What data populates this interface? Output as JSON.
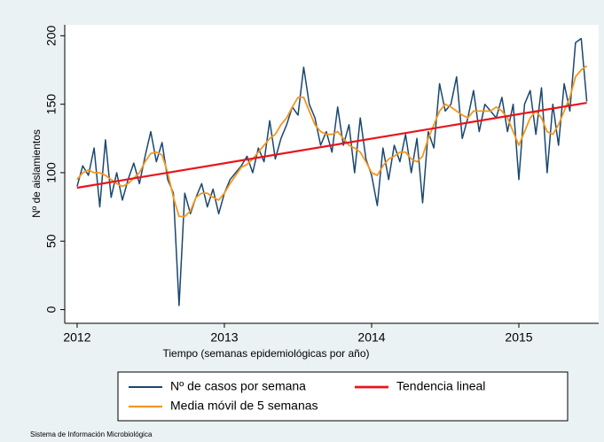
{
  "chart_data": {
    "type": "line",
    "ylabel": "Nº de aislamientos",
    "xlabel": "Tiempo (semanas epidemiológicas por año)",
    "footer": "Sistema de Información Microbiológica",
    "xlim": [
      2011.916,
      2015.542
    ],
    "ylim": [
      -10,
      208
    ],
    "xticks": [
      2012,
      2013,
      2014,
      2015
    ],
    "yticks": [
      0,
      50,
      100,
      150,
      200
    ],
    "x": [
      2012,
      2012.0385,
      2012.0769,
      2012.1154,
      2012.1538,
      2012.1923,
      2012.2308,
      2012.2692,
      2012.3077,
      2012.3462,
      2012.3846,
      2012.4231,
      2012.4615,
      2012.5,
      2012.5385,
      2012.5769,
      2012.6154,
      2012.6538,
      2012.6923,
      2012.7308,
      2012.7692,
      2012.8077,
      2012.8462,
      2012.8846,
      2012.9231,
      2012.9615,
      2013,
      2013.0385,
      2013.0769,
      2013.1154,
      2013.1538,
      2013.1923,
      2013.2308,
      2013.2692,
      2013.3077,
      2013.3462,
      2013.3846,
      2013.4231,
      2013.4615,
      2013.5,
      2013.5385,
      2013.5769,
      2013.6154,
      2013.6538,
      2013.6923,
      2013.7308,
      2013.7692,
      2013.8077,
      2013.8462,
      2013.8846,
      2013.9231,
      2013.9615,
      2014,
      2014.0385,
      2014.0769,
      2014.1154,
      2014.1538,
      2014.1923,
      2014.2308,
      2014.2692,
      2014.3077,
      2014.3462,
      2014.3846,
      2014.4231,
      2014.4615,
      2014.5,
      2014.5385,
      2014.5769,
      2014.6154,
      2014.6538,
      2014.6923,
      2014.7308,
      2014.7692,
      2014.8077,
      2014.8462,
      2014.8846,
      2014.9231,
      2014.9615,
      2015,
      2015.0385,
      2015.0769,
      2015.1154,
      2015.1538,
      2015.1923,
      2015.2308,
      2015.2692,
      2015.3077,
      2015.3462,
      2015.3846,
      2015.4231,
      2015.4615
    ],
    "series": [
      {
        "name": "Nº de casos por semana",
        "color": "#1a476f",
        "width": 1.5,
        "values": [
          90,
          105,
          98,
          118,
          75,
          124,
          82,
          100,
          80,
          95,
          107,
          92,
          112,
          130,
          108,
          122,
          95,
          85,
          3,
          85,
          70,
          82,
          92,
          75,
          88,
          70,
          85,
          95,
          100,
          105,
          112,
          100,
          118,
          108,
          138,
          110,
          125,
          135,
          148,
          142,
          177,
          150,
          140,
          120,
          130,
          115,
          148,
          120,
          135,
          100,
          140,
          110,
          98,
          76,
          118,
          95,
          120,
          108,
          128,
          100,
          125,
          78,
          130,
          118,
          165,
          145,
          150,
          170,
          125,
          140,
          160,
          130,
          150,
          145,
          140,
          155,
          130,
          150,
          95,
          150,
          160,
          128,
          162,
          100,
          150,
          120,
          165,
          145,
          195,
          198,
          152
        ]
      },
      {
        "name": "Media móvil de 5 semanas",
        "color": "#f5961e",
        "width": 1.8,
        "values": [
          95,
          100,
          102,
          100,
          100,
          98,
          95,
          92,
          90,
          92,
          96,
          100,
          108,
          114,
          115,
          113,
          100,
          82,
          68,
          68,
          72,
          82,
          85,
          85,
          82,
          80,
          85,
          92,
          98,
          104,
          106,
          110,
          115,
          120,
          125,
          128,
          135,
          140,
          148,
          155,
          155,
          145,
          135,
          130,
          128,
          128,
          130,
          125,
          120,
          118,
          115,
          108,
          100,
          98,
          105,
          110,
          112,
          115,
          115,
          110,
          108,
          112,
          125,
          135,
          145,
          150,
          148,
          145,
          142,
          140,
          145,
          145,
          145,
          145,
          148,
          145,
          140,
          130,
          120,
          130,
          140,
          145,
          140,
          130,
          128,
          135,
          145,
          155,
          170,
          175,
          178
        ]
      },
      {
        "name": "Tendencia lineal",
        "color": "#e8141c",
        "width": 2.2,
        "x": [
          2012,
          2015.4615
        ],
        "values": [
          89,
          151
        ]
      }
    ]
  }
}
